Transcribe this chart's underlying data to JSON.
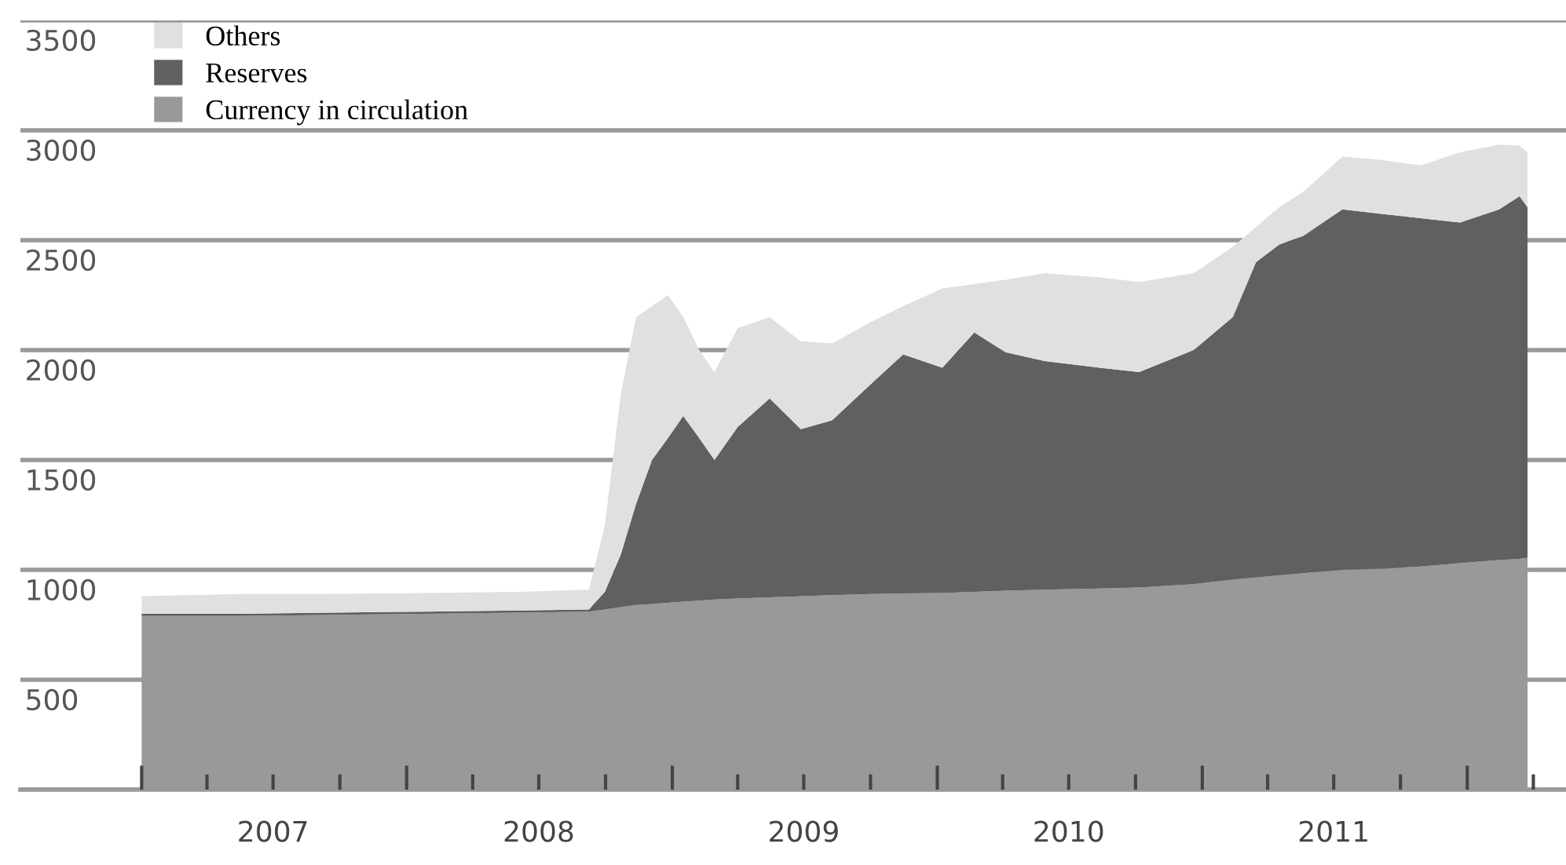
{
  "chart_data": {
    "type": "area",
    "stacked": true,
    "x": [
      "2007-01-01",
      "2007-05-11",
      "2007-09-17",
      "2008-01-25",
      "2008-06-03",
      "2008-09-08",
      "2008-09-30",
      "2008-10-22",
      "2008-11-12",
      "2008-12-04",
      "2008-12-26",
      "2009-01-16",
      "2009-02-07",
      "2009-02-28",
      "2009-04-01",
      "2009-05-15",
      "2009-06-27",
      "2009-08-09",
      "2009-10-03",
      "2009-11-15",
      "2010-01-08",
      "2010-02-21",
      "2010-04-05",
      "2010-05-29",
      "2010-08-13",
      "2010-10-06",
      "2010-12-20",
      "2011-02-12",
      "2011-03-16",
      "2011-04-17",
      "2011-05-20",
      "2011-07-13",
      "2011-09-05",
      "2011-10-29",
      "2011-12-22",
      "2012-02-14",
      "2012-03-13",
      "2012-03-24"
    ],
    "series": [
      {
        "name": "Currency in circulation",
        "color": "#999999",
        "values": [
          790,
          790,
          795,
          800,
          805,
          810,
          820,
          830,
          840,
          845,
          850,
          855,
          860,
          865,
          870,
          875,
          880,
          885,
          890,
          893,
          895,
          900,
          905,
          910,
          915,
          920,
          935,
          955,
          965,
          975,
          985,
          1000,
          1005,
          1015,
          1030,
          1045,
          1050,
          1055
        ]
      },
      {
        "name": "Reserves",
        "color": "#606060",
        "values": [
          10,
          10,
          10,
          10,
          10,
          10,
          80,
          240,
          460,
          655,
          750,
          845,
          740,
          635,
          780,
          905,
          760,
          795,
          960,
          1087,
          1025,
          1180,
          1085,
          1040,
          1005,
          980,
          1065,
          1195,
          1435,
          1505,
          1535,
          1640,
          1615,
          1585,
          1550,
          1595,
          1650,
          1595
        ]
      },
      {
        "name": "Others",
        "color": "#e0e0e0",
        "values": [
          80,
          90,
          85,
          85,
          85,
          90,
          300,
          730,
          850,
          700,
          650,
          450,
          400,
          400,
          450,
          370,
          400,
          350,
          280,
          220,
          360,
          220,
          330,
          400,
          410,
          410,
          350,
          320,
          160,
          170,
          200,
          240,
          245,
          240,
          320,
          295,
          230,
          250
        ]
      }
    ],
    "xlim": [
      "2006-07-18",
      "2012-05-16"
    ],
    "xticks": [
      {
        "value": "2007-01-01",
        "label": null
      },
      {
        "value": "2007-04-01",
        "label": null
      },
      {
        "value": "2007-07-01",
        "label": "2007"
      },
      {
        "value": "2007-10-01",
        "label": null
      },
      {
        "value": "2008-01-01",
        "label": null
      },
      {
        "value": "2008-04-01",
        "label": null
      },
      {
        "value": "2008-07-01",
        "label": "2008"
      },
      {
        "value": "2008-10-01",
        "label": null
      },
      {
        "value": "2009-01-01",
        "label": null
      },
      {
        "value": "2009-04-01",
        "label": null
      },
      {
        "value": "2009-07-01",
        "label": "2009"
      },
      {
        "value": "2009-10-01",
        "label": null
      },
      {
        "value": "2010-01-01",
        "label": null
      },
      {
        "value": "2010-04-01",
        "label": null
      },
      {
        "value": "2010-07-01",
        "label": "2010"
      },
      {
        "value": "2010-10-01",
        "label": null
      },
      {
        "value": "2011-01-01",
        "label": null
      },
      {
        "value": "2011-04-01",
        "label": null
      },
      {
        "value": "2011-07-01",
        "label": "2011"
      },
      {
        "value": "2011-10-01",
        "label": null
      },
      {
        "value": "2012-01-01",
        "label": null
      },
      {
        "value": "2012-04-01",
        "label": null
      }
    ],
    "ylim": [
      0,
      3500
    ],
    "yticks": [
      {
        "value": 0,
        "label": null
      },
      500,
      1000,
      1500,
      2000,
      2500,
      3000,
      3500
    ],
    "grid": "y",
    "legend": "top left"
  }
}
